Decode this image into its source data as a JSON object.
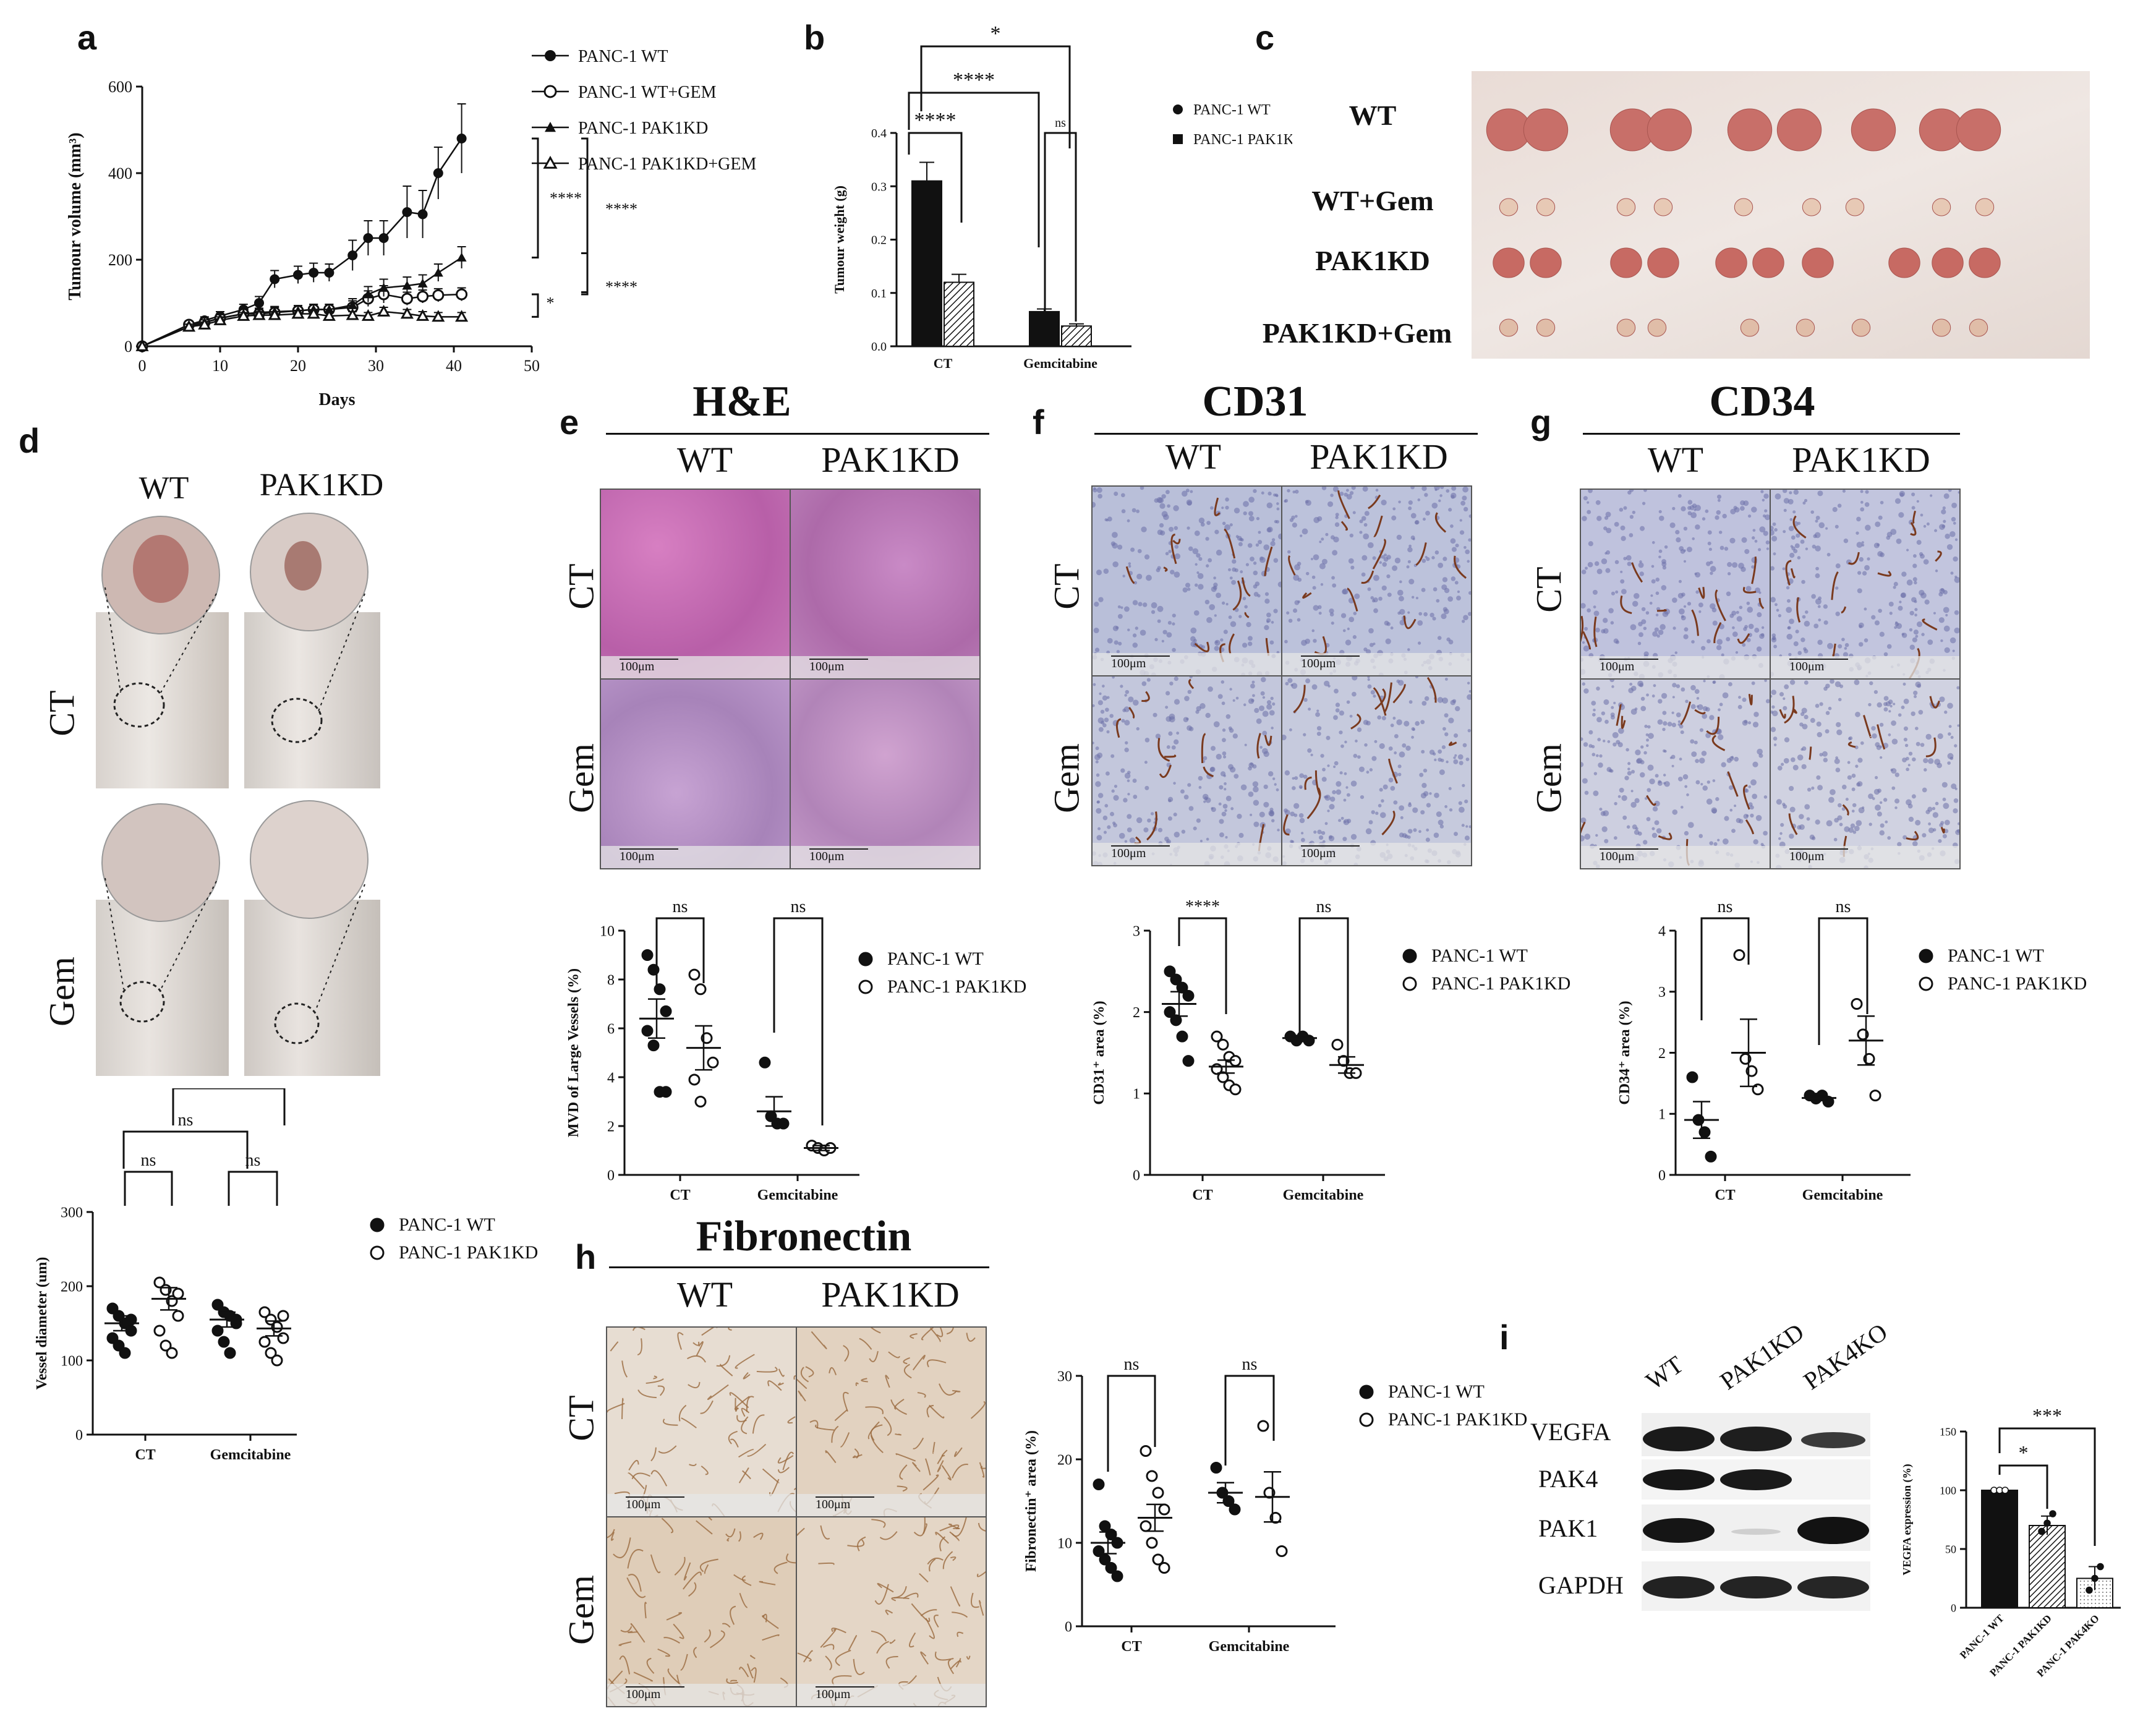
{
  "panels": {
    "a": {
      "label": "a",
      "chart_data": {
        "type": "line",
        "xlabel": "Days",
        "ylabel": "Tumour volume (mm³)",
        "xlim": [
          0,
          50
        ],
        "ylim": [
          0,
          600
        ],
        "xticks": [
          "0",
          "10",
          "20",
          "30",
          "40",
          "50"
        ],
        "yticks": [
          "0",
          "200",
          "400",
          "600"
        ],
        "legend_position": "top-right",
        "x": [
          0,
          6,
          8,
          10,
          13,
          15,
          17,
          20,
          22,
          24,
          27,
          29,
          31,
          34,
          36,
          38,
          41
        ],
        "series": [
          {
            "name": "PANC-1 WT",
            "marker": "filled-circle",
            "values": [
              0,
              50,
              60,
              70,
              85,
              100,
              155,
              165,
              170,
              170,
              210,
              250,
              250,
              310,
              305,
              400,
              480
            ],
            "err": [
              0,
              8,
              8,
              10,
              12,
              15,
              20,
              20,
              22,
              20,
              35,
              40,
              40,
              60,
              55,
              60,
              80
            ]
          },
          {
            "name": "PANC-1 WT+GEM",
            "marker": "open-circle",
            "values": [
              0,
              50,
              55,
              65,
              75,
              75,
              78,
              82,
              85,
              85,
              90,
              110,
              120,
              110,
              115,
              118,
              120
            ],
            "err": [
              0,
              6,
              6,
              8,
              10,
              10,
              12,
              12,
              12,
              12,
              15,
              18,
              20,
              15,
              15,
              15,
              15
            ]
          },
          {
            "name": "PANC-1 PAK1KD",
            "marker": "filled-triangle",
            "values": [
              0,
              45,
              55,
              65,
              75,
              78,
              80,
              82,
              85,
              85,
              95,
              120,
              135,
              140,
              145,
              170,
              205
            ],
            "err": [
              0,
              6,
              6,
              8,
              10,
              10,
              12,
              12,
              12,
              12,
              15,
              18,
              20,
              20,
              20,
              20,
              25
            ]
          },
          {
            "name": "PANC-1 PAK1KD+GEM",
            "marker": "open-triangle",
            "values": [
              0,
              45,
              50,
              60,
              70,
              72,
              72,
              75,
              75,
              70,
              72,
              70,
              80,
              75,
              70,
              68,
              68
            ],
            "err": [
              0,
              6,
              6,
              8,
              8,
              8,
              8,
              8,
              8,
              8,
              8,
              8,
              10,
              10,
              10,
              10,
              10
            ]
          }
        ],
        "annotations": [
          "****",
          "****",
          "****",
          "*"
        ]
      }
    },
    "b": {
      "label": "b",
      "chart_data": {
        "type": "bar",
        "ylabel": "Tumour weight (g)",
        "ylim": [
          0,
          0.4
        ],
        "yticks": [
          "0.0",
          "0.1",
          "0.2",
          "0.3",
          "0.4"
        ],
        "categories": [
          "CT",
          "Gemcitabine"
        ],
        "legend_position": "right",
        "series": [
          {
            "name": "PANC-1 WT",
            "values": [
              0.31,
              0.065
            ],
            "err": [
              0.035,
              0.005
            ]
          },
          {
            "name": "PANC-1 PAK1KD",
            "values": [
              0.12,
              0.038
            ],
            "err": [
              0.015,
              0.004
            ]
          }
        ],
        "annotations": [
          "*",
          "****",
          "****",
          "ns"
        ]
      }
    },
    "c": {
      "label": "c",
      "rows": [
        "WT",
        "WT+Gem",
        "PAK1KD",
        "PAK1KD+Gem"
      ]
    },
    "d": {
      "label": "d",
      "cols": [
        "WT",
        "PAK1KD"
      ],
      "rows": [
        "CT",
        "Gem"
      ],
      "chart_data": {
        "type": "scatter",
        "ylabel": "Vessel diameter (um)",
        "ylim": [
          0,
          300
        ],
        "yticks": [
          "0",
          "100",
          "200",
          "300"
        ],
        "categories": [
          "CT",
          "Gemcitabine"
        ],
        "legend_position": "right",
        "series": [
          {
            "name": "PANC-1 WT",
            "groups": [
              [
                170,
                160,
                150,
                140,
                130,
                120,
                110,
                155
              ],
              [
                175,
                165,
                160,
                150,
                140,
                125,
                110,
                155
              ]
            ],
            "mean": [
              150,
              155
            ],
            "sem": [
              10,
              10
            ]
          },
          {
            "name": "PANC-1 PAK1KD",
            "groups": [
              [
                205,
                195,
                180,
                160,
                140,
                120,
                110,
                190
              ],
              [
                165,
                155,
                145,
                130,
                125,
                110,
                100,
                160
              ]
            ],
            "mean": [
              183,
              143
            ],
            "sem": [
              15,
              10
            ]
          }
        ],
        "annotations": [
          "ns",
          "ns",
          "ns",
          "ns"
        ]
      }
    },
    "e": {
      "label": "e",
      "title": "H&E",
      "cols": [
        "WT",
        "PAK1KD"
      ],
      "rows": [
        "CT",
        "Gem"
      ],
      "scale": "100μm",
      "chart_data": {
        "type": "scatter",
        "ylabel": "MVD of Large Vessels (%)",
        "ylim": [
          0,
          10
        ],
        "yticks": [
          "0",
          "2",
          "4",
          "6",
          "8",
          "10"
        ],
        "categories": [
          "CT",
          "Gemcitabine"
        ],
        "legend_position": "right",
        "series": [
          {
            "name": "PANC-1 WT",
            "groups": [
              [
                9.0,
                8.4,
                7.6,
                6.7,
                5.9,
                5.3,
                3.4,
                3.4
              ],
              [
                4.6,
                2.4,
                2.1,
                2.1
              ]
            ],
            "mean": [
              6.4,
              2.6
            ],
            "sem": [
              0.8,
              0.6
            ]
          },
          {
            "name": "PANC-1 PAK1KD",
            "groups": [
              [
                8.2,
                7.6,
                5.6,
                4.6,
                3.9,
                3.0
              ],
              [
                1.2,
                1.1,
                1.0,
                1.1
              ]
            ],
            "mean": [
              5.2,
              1.1
            ],
            "sem": [
              0.9,
              0.1
            ]
          }
        ],
        "annotations": [
          "ns",
          "ns"
        ]
      }
    },
    "f": {
      "label": "f",
      "title": "CD31",
      "cols": [
        "WT",
        "PAK1KD"
      ],
      "rows": [
        "CT",
        "Gem"
      ],
      "scale": "100μm",
      "chart_data": {
        "type": "scatter",
        "ylabel": "CD31⁺ area (%)",
        "ylim": [
          0,
          3
        ],
        "yticks": [
          "0",
          "1",
          "2",
          "3"
        ],
        "categories": [
          "CT",
          "Gemcitabine"
        ],
        "legend_position": "right",
        "series": [
          {
            "name": "PANC-1 WT",
            "groups": [
              [
                2.5,
                2.4,
                2.3,
                2.2,
                2.0,
                1.9,
                1.7,
                1.4
              ],
              [
                1.7,
                1.65,
                1.7,
                1.65
              ]
            ],
            "mean": [
              2.1,
              1.68
            ],
            "sem": [
              0.15,
              0.03
            ]
          },
          {
            "name": "PANC-1 PAK1KD",
            "groups": [
              [
                1.7,
                1.6,
                1.45,
                1.4,
                1.3,
                1.2,
                1.1,
                1.05
              ],
              [
                1.6,
                1.4,
                1.25,
                1.25
              ]
            ],
            "mean": [
              1.33,
              1.35
            ],
            "sem": [
              0.08,
              0.1
            ]
          }
        ],
        "annotations": [
          "****",
          "ns"
        ]
      }
    },
    "g": {
      "label": "g",
      "title": "CD34",
      "cols": [
        "WT",
        "PAK1KD"
      ],
      "rows": [
        "CT",
        "Gem"
      ],
      "scale": "100μm",
      "chart_data": {
        "type": "scatter",
        "ylabel": "CD34⁺ area (%)",
        "ylim": [
          0,
          4
        ],
        "yticks": [
          "0",
          "1",
          "2",
          "3",
          "4"
        ],
        "categories": [
          "CT",
          "Gemcitabine"
        ],
        "legend_position": "right",
        "series": [
          {
            "name": "PANC-1 WT",
            "groups": [
              [
                1.6,
                0.9,
                0.7,
                0.3
              ],
              [
                1.3,
                1.25,
                1.3,
                1.2
              ]
            ],
            "mean": [
              0.9,
              1.26
            ],
            "sem": [
              0.3,
              0.03
            ]
          },
          {
            "name": "PANC-1 PAK1KD",
            "groups": [
              [
                3.6,
                1.9,
                1.7,
                1.4
              ],
              [
                2.8,
                2.3,
                1.9,
                1.3
              ]
            ],
            "mean": [
              2.0,
              2.2
            ],
            "sem": [
              0.55,
              0.4
            ]
          }
        ],
        "annotations": [
          "ns",
          "ns"
        ]
      }
    },
    "h": {
      "label": "h",
      "title": "Fibronectin",
      "cols": [
        "WT",
        "PAK1KD"
      ],
      "rows": [
        "CT",
        "Gem"
      ],
      "scale": "100μm",
      "chart_data": {
        "type": "scatter",
        "ylabel": "Fibronectin⁺ area (%)",
        "ylim": [
          0,
          30
        ],
        "yticks": [
          "0",
          "10",
          "20",
          "30"
        ],
        "categories": [
          "CT",
          "Gemcitabine"
        ],
        "legend_position": "right",
        "series": [
          {
            "name": "PANC-1 WT",
            "groups": [
              [
                17,
                12,
                11,
                10,
                9,
                8,
                7,
                6
              ],
              [
                19,
                16,
                15,
                14
              ]
            ],
            "mean": [
              10,
              16
            ],
            "sem": [
              1.3,
              1.2
            ]
          },
          {
            "name": "PANC-1 PAK1KD",
            "groups": [
              [
                21,
                18,
                16,
                14,
                12,
                10,
                8,
                7
              ],
              [
                24,
                16,
                13,
                9
              ]
            ],
            "mean": [
              13,
              15.5
            ],
            "sem": [
              1.6,
              3.0
            ]
          }
        ],
        "annotations": [
          "ns",
          "ns"
        ]
      }
    },
    "i": {
      "label": "i",
      "wb_cols": [
        "WT",
        "PAK1KD",
        "PAK4KO"
      ],
      "wb_rows": [
        "VEGFA",
        "PAK4",
        "PAK1",
        "GAPDH"
      ],
      "chart_data": {
        "type": "bar",
        "ylabel": "VEGFA expression (%)",
        "ylim": [
          0,
          150
        ],
        "yticks": [
          "0",
          "50",
          "100",
          "150"
        ],
        "categories": [
          "PANC-1 WT",
          "PANC-1 PAK1KD",
          "PANC-1 PAK4KO"
        ],
        "values": [
          100,
          70,
          25
        ],
        "err": [
          0,
          8,
          10
        ],
        "points": [
          [
            100,
            100,
            100
          ],
          [
            65,
            72,
            80
          ],
          [
            15,
            25,
            35
          ]
        ],
        "annotations": [
          "***",
          "*"
        ]
      }
    }
  },
  "legend": {
    "wt": "PANC-1 WT",
    "kd": "PANC-1 PAK1KD"
  }
}
